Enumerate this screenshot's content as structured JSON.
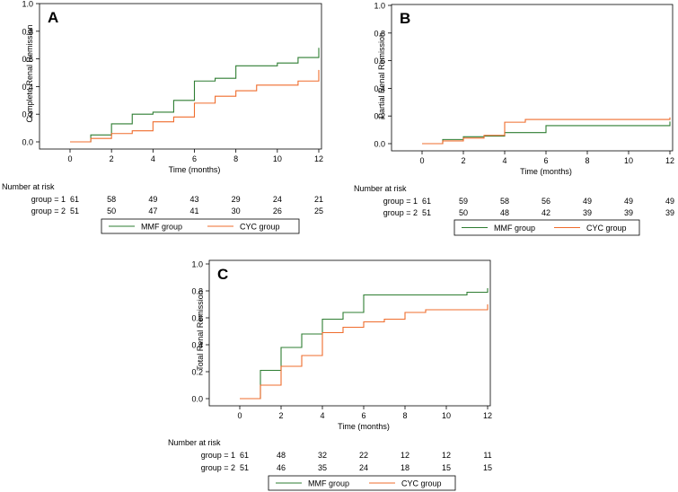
{
  "colors": {
    "mmf": "#2e7d32",
    "cyc": "#ef6c2c",
    "axis": "#000000",
    "frame": "#000000"
  },
  "chart_data": [
    {
      "type": "line",
      "step": true,
      "panel_label": "A",
      "ylabel": "Complete Renal Remission",
      "xlabel": "Time (months)",
      "xlim": [
        0,
        12
      ],
      "ylim": [
        0,
        1.0
      ],
      "xticks": [
        0,
        2,
        4,
        6,
        8,
        10,
        12
      ],
      "yticks": [
        "0.0",
        "0.2",
        "0.4",
        "0.6",
        "0.8",
        "1.0"
      ],
      "series": [
        {
          "name": "MMF group",
          "color_key": "mmf",
          "x": [
            0,
            1,
            2,
            3,
            4,
            5,
            6,
            7,
            8,
            10,
            11,
            12,
            12
          ],
          "y": [
            0,
            0.05,
            0.13,
            0.2,
            0.215,
            0.3,
            0.44,
            0.46,
            0.55,
            0.57,
            0.61,
            0.61,
            0.68
          ]
        },
        {
          "name": "CYC group",
          "color_key": "cyc",
          "x": [
            0,
            1,
            2,
            3,
            4,
            5,
            6,
            7,
            8,
            9,
            11,
            12,
            12
          ],
          "y": [
            0,
            0.025,
            0.06,
            0.08,
            0.145,
            0.18,
            0.28,
            0.33,
            0.37,
            0.41,
            0.44,
            0.44,
            0.52
          ]
        }
      ],
      "risk_table": {
        "title": "Number at risk",
        "rows": [
          {
            "label": "group = 1",
            "values": [
              "61",
              "58",
              "49",
              "43",
              "29",
              "24",
              "21"
            ]
          },
          {
            "label": "group = 2",
            "values": [
              "51",
              "50",
              "47",
              "41",
              "30",
              "26",
              "25"
            ]
          }
        ]
      },
      "legend": [
        {
          "label": "MMF group",
          "color_key": "mmf"
        },
        {
          "label": "CYC group",
          "color_key": "cyc"
        }
      ]
    },
    {
      "type": "line",
      "step": true,
      "panel_label": "B",
      "ylabel": "Partial Renal Remission",
      "xlabel": "Time (months)",
      "xlim": [
        0,
        12
      ],
      "ylim": [
        0,
        1.0
      ],
      "xticks": [
        0,
        2,
        4,
        6,
        8,
        10,
        12
      ],
      "yticks": [
        "0.0",
        "0.2",
        "0.4",
        "0.6",
        "0.8",
        "1.0"
      ],
      "series": [
        {
          "name": "MMF group",
          "color_key": "mmf",
          "x": [
            0,
            1,
            2,
            3,
            4,
            6,
            12,
            12
          ],
          "y": [
            0,
            0.03,
            0.05,
            0.055,
            0.08,
            0.13,
            0.13,
            0.16
          ]
        },
        {
          "name": "CYC group",
          "color_key": "cyc",
          "x": [
            0,
            1,
            2,
            3,
            4,
            5,
            12,
            12
          ],
          "y": [
            0,
            0.02,
            0.04,
            0.06,
            0.155,
            0.175,
            0.175,
            0.19
          ]
        }
      ],
      "risk_table": {
        "title": "Number at risk",
        "rows": [
          {
            "label": "group = 1",
            "values": [
              "61",
              "59",
              "58",
              "56",
              "49",
              "49",
              "49"
            ]
          },
          {
            "label": "group = 2",
            "values": [
              "51",
              "50",
              "48",
              "42",
              "39",
              "39",
              "39"
            ]
          }
        ]
      },
      "legend": [
        {
          "label": "MMF group",
          "color_key": "mmf"
        },
        {
          "label": "CYC group",
          "color_key": "cyc"
        }
      ]
    },
    {
      "type": "line",
      "step": true,
      "panel_label": "C",
      "ylabel": "Total Renal Remission",
      "xlabel": "Time (months)",
      "xlim": [
        0,
        12
      ],
      "ylim": [
        0,
        1.0
      ],
      "xticks": [
        0,
        2,
        4,
        6,
        8,
        10,
        12
      ],
      "yticks": [
        "0.0",
        "0.2",
        "0.4",
        "0.6",
        "0.8",
        "1.0"
      ],
      "series": [
        {
          "name": "MMF group",
          "color_key": "mmf",
          "x": [
            0,
            1,
            2,
            3,
            4,
            5,
            6,
            11,
            12,
            12
          ],
          "y": [
            0,
            0.21,
            0.38,
            0.48,
            0.59,
            0.64,
            0.77,
            0.79,
            0.79,
            0.82
          ]
        },
        {
          "name": "CYC group",
          "color_key": "cyc",
          "x": [
            0,
            1,
            2,
            3,
            4,
            5,
            6,
            7,
            8,
            9,
            12,
            12
          ],
          "y": [
            0,
            0.1,
            0.24,
            0.32,
            0.49,
            0.53,
            0.57,
            0.59,
            0.64,
            0.66,
            0.66,
            0.7
          ]
        }
      ],
      "risk_table": {
        "title": "Number at risk",
        "rows": [
          {
            "label": "group = 1",
            "values": [
              "61",
              "48",
              "32",
              "22",
              "12",
              "12",
              "11"
            ]
          },
          {
            "label": "group = 2",
            "values": [
              "51",
              "46",
              "35",
              "24",
              "18",
              "15",
              "15"
            ]
          }
        ]
      },
      "legend": [
        {
          "label": "MMF group",
          "color_key": "mmf"
        },
        {
          "label": "CYC group",
          "color_key": "cyc"
        }
      ]
    }
  ]
}
